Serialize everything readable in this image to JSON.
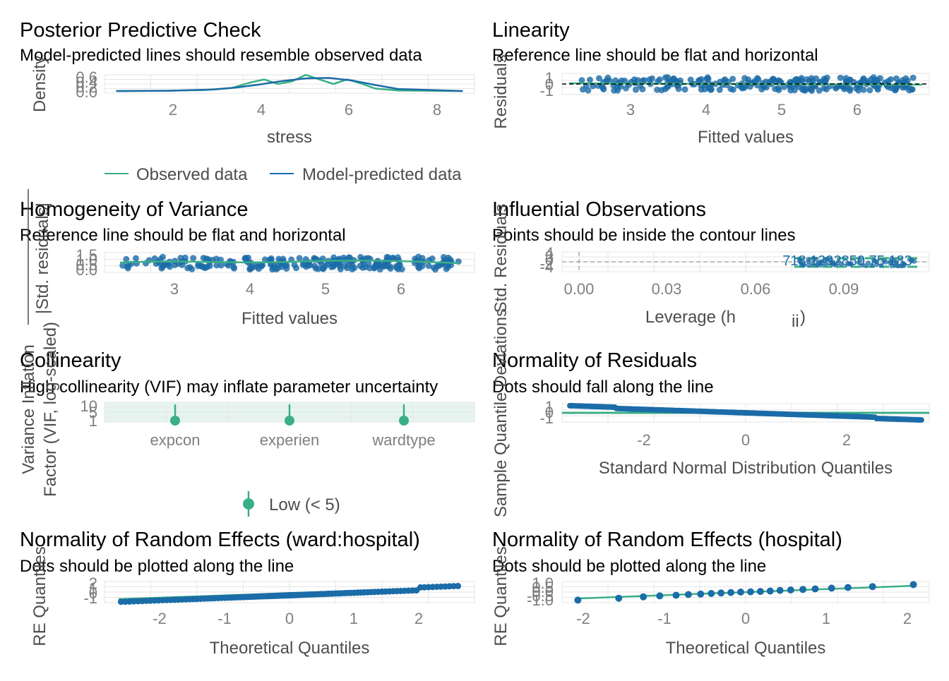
{
  "colors": {
    "observed": "#3aaf85",
    "predicted": "#1b6ca8",
    "reference": "#000000",
    "grid": "#e5e5e5",
    "ref_green": "#3aaf85"
  },
  "panels": {
    "ppc": {
      "title": "Posterior Predictive Check",
      "subtitle": "Model-predicted lines should resemble observed data",
      "xlabel": "stress",
      "ylabel": "Density",
      "xticks": [
        "2",
        "4",
        "6",
        "8"
      ],
      "yticks": [
        "0.0",
        "0.2",
        "0.4",
        "0.6"
      ],
      "legend": [
        "Observed data",
        "Model-predicted data"
      ]
    },
    "linearity": {
      "title": "Linearity",
      "subtitle": "Reference line should be flat and horizontal",
      "xlabel": "Fitted values",
      "ylabel": "Residuals",
      "xticks": [
        "3",
        "4",
        "5",
        "6"
      ],
      "yticks": [
        "-1",
        "0",
        "1"
      ]
    },
    "homogeneity": {
      "title": "Homogeneity of Variance",
      "subtitle": "Reference line should be flat and horizontal",
      "xlabel": "Fitted values",
      "ylabel": "|Std. residuals|",
      "xticks": [
        "3",
        "4",
        "5",
        "6"
      ],
      "yticks": [
        "0.0",
        "0.5",
        "1.0",
        "1.5"
      ]
    },
    "influential": {
      "title": "Influential Observations",
      "subtitle": "Points should be inside the contour lines",
      "xlabel": "Leverage (h",
      "xlabel_sub": "ii",
      "xlabel_close": ")",
      "ylabel": "Std. Residuals",
      "xticks": [
        "0.00",
        "0.03",
        "0.06",
        "0.09"
      ],
      "yticks": [
        "-4",
        "-2",
        "0",
        "2",
        "4"
      ],
      "point_labels": "718 1292850 75 183"
    },
    "collinearity": {
      "title": "Collinearity",
      "subtitle": "High collinearity (VIF) may inflate parameter uncertainty",
      "ylabel_line1": "Variance Inflation",
      "ylabel_line2": "Factor (VIF, log-scaled)",
      "xticks": [
        "expcon",
        "experien",
        "wardtype"
      ],
      "yticks": [
        "1",
        "5",
        "10"
      ],
      "legend": "Low (< 5)"
    },
    "normality_resid": {
      "title": "Normality of Residuals",
      "subtitle": "Dots should fall along the line",
      "xlabel": "Standard Normal Distribution Quantiles",
      "ylabel": "Sample Quantile Deviations",
      "xticks": [
        "-2",
        "0",
        "2"
      ],
      "yticks": [
        "-1",
        "0",
        "1"
      ]
    },
    "re_ward": {
      "title": "Normality of Random Effects (ward:hospital)",
      "subtitle": "Dots should be plotted along the line",
      "xlabel": "Theoretical Quantiles",
      "ylabel": "RE Quantiles",
      "xticks": [
        "-2",
        "-1",
        "0",
        "1",
        "2"
      ],
      "yticks": [
        "-1",
        "0",
        "1",
        "2"
      ]
    },
    "re_hospital": {
      "title": "Normality of Random Effects (hospital)",
      "subtitle": "Dots should be plotted along the line",
      "xlabel": "Theoretical Quantiles",
      "ylabel": "RE Quantiles",
      "xticks": [
        "-2",
        "-1",
        "0",
        "1",
        "2"
      ],
      "yticks": [
        "-1.0",
        "-0.5",
        "0.0",
        "0.5",
        "1.0"
      ]
    }
  },
  "chart_data": [
    {
      "type": "line",
      "title": "Posterior Predictive Check",
      "xlabel": "stress",
      "ylabel": "Density",
      "xlim": [
        0.8,
        8.5
      ],
      "ylim": [
        0,
        0.7
      ],
      "series": [
        {
          "name": "Observed data",
          "x": [
            0.9,
            2,
            2.8,
            3.4,
            3.8,
            4.1,
            4.4,
            4.7,
            5.0,
            5.3,
            5.6,
            5.9,
            6.2,
            6.5,
            7,
            8.4
          ],
          "y": [
            0,
            0.01,
            0.04,
            0.12,
            0.34,
            0.46,
            0.28,
            0.38,
            0.64,
            0.46,
            0.28,
            0.46,
            0.3,
            0.1,
            0.02,
            0
          ]
        },
        {
          "name": "Model-predicted data",
          "x": [
            0.9,
            2,
            3,
            3.5,
            4,
            4.5,
            5,
            5.5,
            6,
            6.5,
            7,
            8.4
          ],
          "y": [
            0,
            0.01,
            0.06,
            0.14,
            0.26,
            0.4,
            0.5,
            0.52,
            0.42,
            0.24,
            0.08,
            0
          ]
        }
      ]
    },
    {
      "type": "scatter",
      "title": "Linearity",
      "xlabel": "Fitted values",
      "ylabel": "Residuals",
      "xlim": [
        2.2,
        6.8
      ],
      "ylim": [
        -1.5,
        1.5
      ]
    },
    {
      "type": "scatter",
      "title": "Homogeneity of Variance",
      "xlabel": "Fitted values",
      "ylabel": "|Std. residuals|",
      "xlim": [
        2.2,
        6.8
      ],
      "ylim": [
        0,
        1.7
      ]
    },
    {
      "type": "scatter",
      "title": "Influential Observations",
      "xlabel": "Leverage (hii)",
      "ylabel": "Std. Residuals",
      "xlim": [
        0,
        0.13
      ],
      "ylim": [
        -5,
        5
      ]
    },
    {
      "type": "scatter",
      "title": "Collinearity",
      "ylabel": "Variance Inflation Factor (VIF, log-scaled)",
      "categories": [
        "expcon",
        "experien",
        "wardtype"
      ],
      "values": [
        1.05,
        1.05,
        1.05
      ],
      "legend": [
        "Low (< 5)"
      ]
    },
    {
      "type": "scatter",
      "title": "Normality of Residuals",
      "xlabel": "Standard Normal Distribution Quantiles",
      "ylabel": "Sample Quantile Deviations",
      "xlim": [
        -3.6,
        3.6
      ],
      "ylim": [
        -1.4,
        1.4
      ]
    },
    {
      "type": "scatter",
      "title": "Normality of Random Effects (ward:hospital)",
      "xlabel": "Theoretical Quantiles",
      "ylabel": "RE Quantiles",
      "xlim": [
        -2.8,
        2.8
      ],
      "ylim": [
        -1.3,
        2.7
      ]
    },
    {
      "type": "scatter",
      "title": "Normality of Random Effects (hospital)",
      "xlabel": "Theoretical Quantiles",
      "ylabel": "RE Quantiles",
      "xlim": [
        -2.2,
        2.2
      ],
      "ylim": [
        -1.2,
        1.2
      ],
      "series": [
        {
          "name": "",
          "x": [
            -2.05,
            -1.55,
            -1.25,
            -1.05,
            -0.85,
            -0.7,
            -0.55,
            -0.42,
            -0.3,
            -0.18,
            -0.06,
            0.06,
            0.18,
            0.3,
            0.42,
            0.55,
            0.7,
            0.85,
            1.05,
            1.25,
            1.55,
            2.05
          ],
          "y": [
            -1.05,
            -0.8,
            -0.62,
            -0.5,
            -0.42,
            -0.32,
            -0.26,
            -0.18,
            -0.12,
            -0.06,
            0,
            0.04,
            0.08,
            0.14,
            0.22,
            0.28,
            0.34,
            0.42,
            0.52,
            0.6,
            0.72,
            0.98
          ]
        }
      ]
    }
  ]
}
